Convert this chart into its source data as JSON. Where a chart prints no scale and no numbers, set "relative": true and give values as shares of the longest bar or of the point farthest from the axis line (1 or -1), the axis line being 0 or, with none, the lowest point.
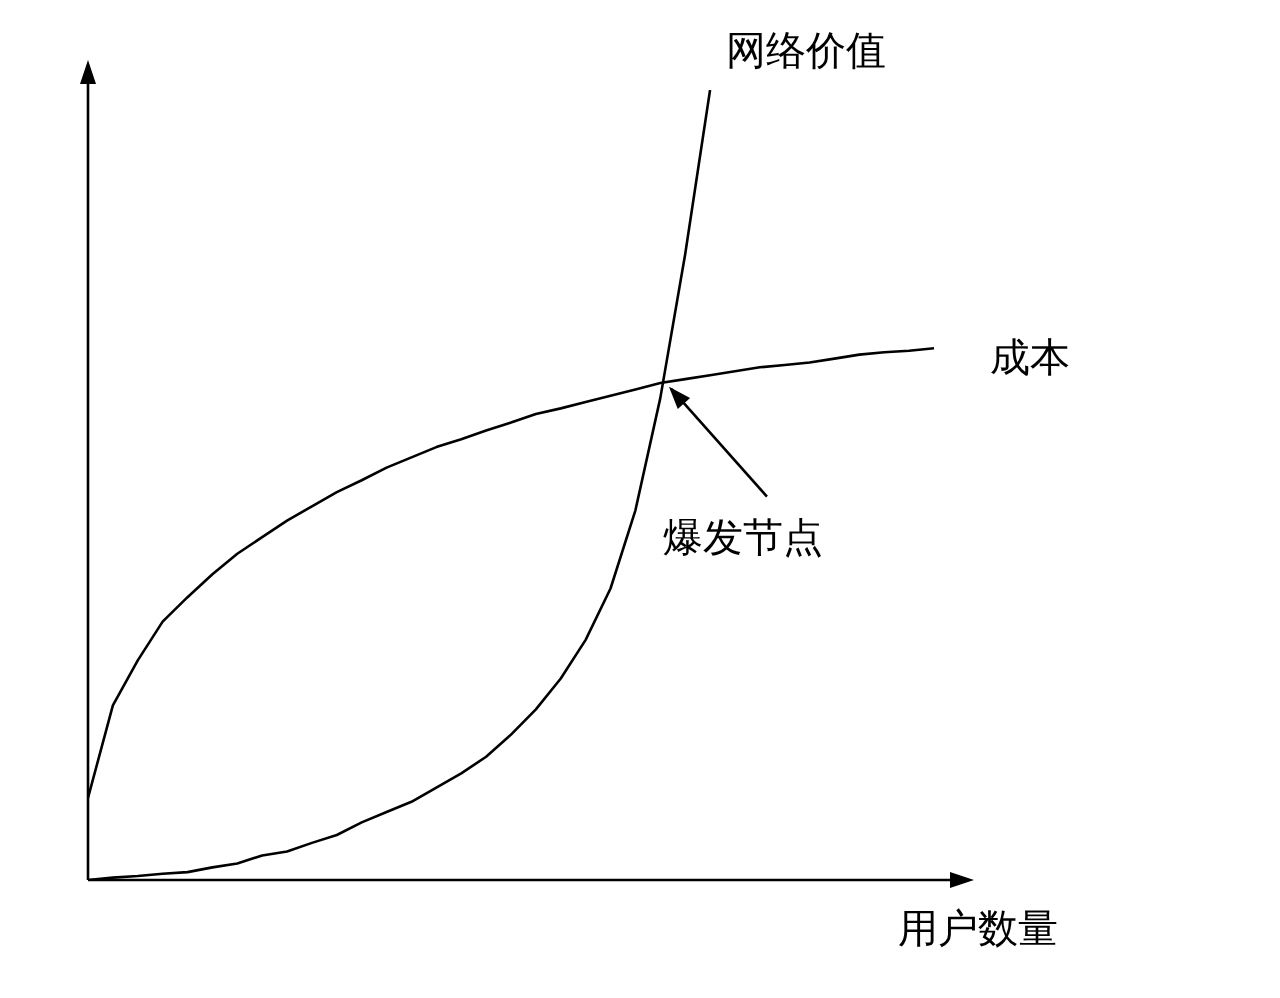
{
  "chart_data": {
    "type": "line",
    "relative": true,
    "xlabel": "用户数量",
    "legend": false,
    "marker": "none",
    "line_style": "solid",
    "categories": [
      null,
      null,
      null,
      null,
      null,
      null,
      null,
      null,
      null,
      null,
      null,
      null,
      null,
      null,
      null,
      null,
      null,
      null,
      null,
      null,
      null,
      null,
      null,
      null,
      null,
      null,
      null,
      null,
      null,
      null,
      null,
      null,
      null,
      null,
      null
    ],
    "series": [
      {
        "name": "网络价值",
        "color": "#000000",
        "values": [
          0,
          0.003,
          0.005,
          0.008,
          0.01,
          0.016,
          0.021,
          0.031,
          0.036,
          0.047,
          0.057,
          0.073,
          0.086,
          0.099,
          0.117,
          0.135,
          0.156,
          0.184,
          0.216,
          0.255,
          0.304,
          0.369,
          0.468,
          0.61,
          0.792,
          1,
          null,
          null,
          null,
          null,
          null,
          null,
          null,
          null,
          null
        ]
      },
      {
        "name": "成本",
        "color": "#000000",
        "values": [
          0.104,
          0.221,
          0.278,
          0.327,
          0.358,
          0.387,
          0.413,
          0.434,
          0.455,
          0.473,
          0.491,
          0.506,
          0.522,
          0.535,
          0.548,
          0.558,
          0.569,
          0.579,
          0.59,
          0.597,
          0.605,
          0.613,
          0.621,
          0.629,
          0.634,
          0.639,
          0.644,
          0.649,
          0.652,
          0.655,
          0.66,
          0.665,
          0.668,
          0.67,
          0.673
        ]
      }
    ],
    "annotations": [
      "爆发节点"
    ]
  }
}
